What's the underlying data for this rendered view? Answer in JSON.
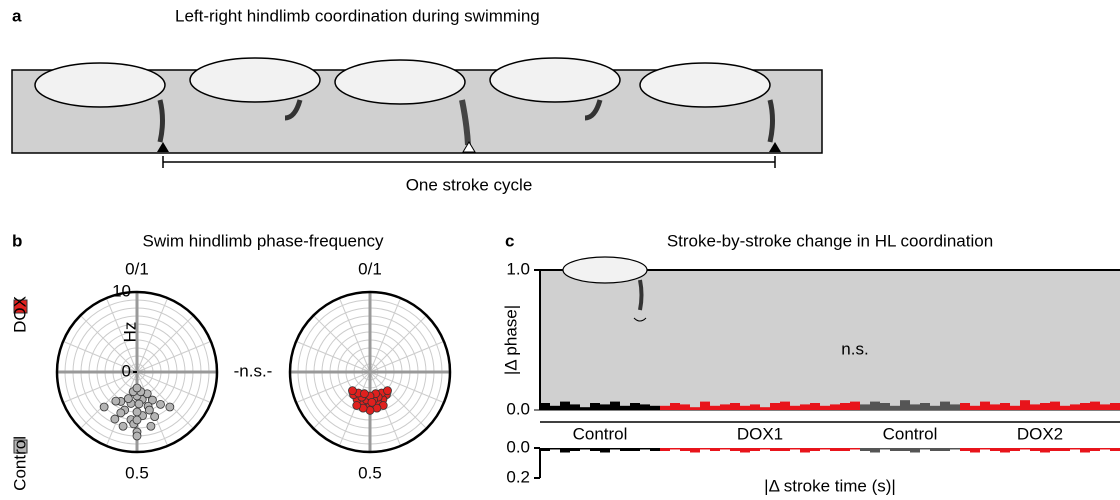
{
  "panel_a": {
    "label": "a",
    "title": "Left-right hindlimb coordination during swimming",
    "caption": "One stroke cycle"
  },
  "chart_data": [
    {
      "type": "polar-scatter",
      "label": "b",
      "title": "Swim hindlimb phase-frequency",
      "r_label": "Hz",
      "annotation": "-n.s.-",
      "rlim": [
        0,
        10
      ],
      "rticks": [
        0,
        10
      ],
      "phase_ticks": [
        {
          "value": 0,
          "label": "0/1"
        },
        0.5
      ],
      "series": [
        {
          "name": "Control",
          "color": "#b4b4b4",
          "phase": [
            0.42,
            0.45,
            0.47,
            0.5,
            0.53,
            0.55,
            0.58,
            0.44,
            0.48,
            0.5,
            0.52,
            0.56,
            0.4,
            0.46,
            0.5,
            0.54,
            0.6,
            0.43,
            0.49,
            0.51,
            0.57,
            0.45,
            0.5,
            0.55,
            0.38,
            0.62,
            0.47,
            0.53,
            0.5,
            0.5
          ],
          "values": [
            4,
            4.5,
            3.5,
            3,
            4,
            5,
            4.2,
            6,
            5.5,
            5,
            6,
            5.5,
            5,
            7,
            7.5,
            7,
            4.5,
            3,
            4,
            6.5,
            6.5,
            5,
            8,
            3.5,
            6,
            6,
            2.5,
            2.5,
            2,
            6
          ]
        },
        {
          "name": "DOX",
          "color": "#e0201e",
          "phase": [
            0.4,
            0.43,
            0.46,
            0.5,
            0.54,
            0.57,
            0.6,
            0.42,
            0.45,
            0.48,
            0.52,
            0.55,
            0.58,
            0.44,
            0.47,
            0.5,
            0.53,
            0.56,
            0.38,
            0.62,
            0.46,
            0.5,
            0.54,
            0.49
          ],
          "values": [
            3.5,
            3.8,
            4,
            4.2,
            4,
            3.8,
            3.5,
            3,
            3.3,
            3.5,
            3.5,
            3.3,
            3,
            4.5,
            4.6,
            4.8,
            4.6,
            4.5,
            3.2,
            3.2,
            2.8,
            3,
            2.8,
            3.8
          ]
        }
      ]
    },
    {
      "type": "trace",
      "label": "c",
      "title": "Stroke-by-stroke change in HL coordination",
      "annotation": "n.s.",
      "ylabel": "|Δ phase|",
      "ylim": [
        0,
        1
      ],
      "yticks": [
        {
          "value": 0,
          "label": "0.0"
        },
        {
          "value": 1,
          "label": "1.0"
        }
      ],
      "y2label": "|Δ stroke time (s)|",
      "y2lim": [
        0,
        0.2
      ],
      "y2ticks": [
        {
          "value": 0,
          "label": "0.0"
        },
        {
          "value": 0.2,
          "label": "0.2"
        }
      ],
      "y2_inverted": true,
      "series": [
        {
          "name": "Control",
          "color": "#000000",
          "values": [
            0.05,
            0.03,
            0.06,
            0.04,
            0.02,
            0.05,
            0.04,
            0.06,
            0.03,
            0.05,
            0.04,
            0.03
          ],
          "values2": [
            0.02,
            0.01,
            0.03,
            0.02,
            0.01,
            0.02,
            0.03,
            0.01,
            0.02,
            0.02,
            0.01,
            0.02
          ]
        },
        {
          "name": "DOX1",
          "color": "#e8141b",
          "values": [
            0.03,
            0.05,
            0.04,
            0.02,
            0.06,
            0.03,
            0.04,
            0.05,
            0.03,
            0.04,
            0.02,
            0.05,
            0.06,
            0.03,
            0.04,
            0.05,
            0.03,
            0.04,
            0.05,
            0.06
          ],
          "values2": [
            0.02,
            0.01,
            0.02,
            0.03,
            0.01,
            0.02,
            0.01,
            0.02,
            0.03,
            0.02,
            0.01,
            0.02,
            0.02,
            0.01,
            0.03,
            0.02,
            0.01,
            0.02,
            0.02,
            0.01
          ]
        },
        {
          "name": "Control",
          "color": "#555555",
          "values": [
            0.04,
            0.06,
            0.05,
            0.03,
            0.07,
            0.04,
            0.05,
            0.03,
            0.06,
            0.04
          ],
          "values2": [
            0.02,
            0.03,
            0.01,
            0.02,
            0.02,
            0.03,
            0.01,
            0.02,
            0.02,
            0.01
          ]
        },
        {
          "name": "DOX2",
          "color": "#e8141b",
          "values": [
            0.05,
            0.03,
            0.06,
            0.04,
            0.05,
            0.03,
            0.07,
            0.04,
            0.05,
            0.06,
            0.03,
            0.04,
            0.05,
            0.06,
            0.04,
            0.05
          ],
          "values2": [
            0.02,
            0.03,
            0.01,
            0.02,
            0.03,
            0.02,
            0.01,
            0.02,
            0.03,
            0.02,
            0.02,
            0.01,
            0.03,
            0.02,
            0.01,
            0.02
          ]
        }
      ]
    }
  ]
}
